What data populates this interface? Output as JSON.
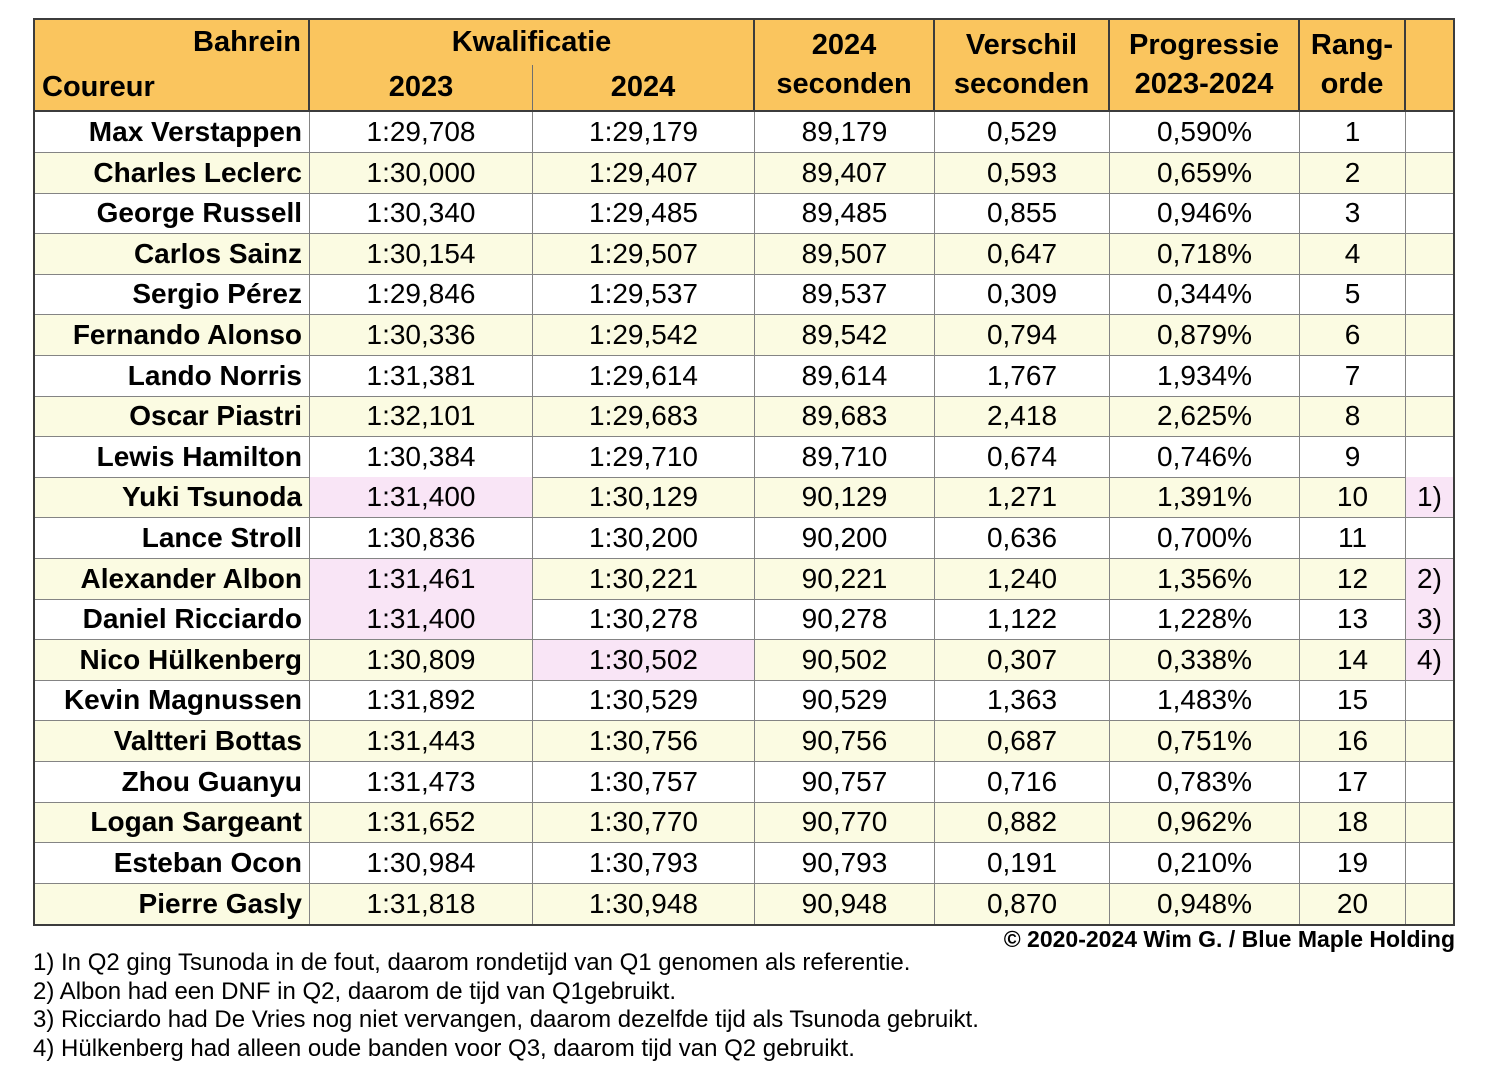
{
  "colors": {
    "header_bg": "#FAC55E",
    "alt_bg": "#FBFBE2",
    "hl_bg": "#F9E5F6",
    "grid": "#848484",
    "outer": "#3C3C3C"
  },
  "table": {
    "header": {
      "corner_top": "Bahrein",
      "corner_bottom": "Coureur",
      "group": "Kwalificatie",
      "sub_2023": "2023",
      "sub_2024": "2024",
      "col_seconds_line1": "2024",
      "col_seconds_line2": "seconden",
      "col_diff_line1": "Verschil",
      "col_diff_line2": "seconden",
      "col_progress_line1": "Progressie",
      "col_progress_line2": "2023-2024",
      "col_rank_line1": "Rang-",
      "col_rank_line2": "orde"
    },
    "rows": [
      {
        "coureur": "Max Verstappen",
        "q2023": "1:29,708",
        "q2024": "1:29,179",
        "sec": "89,179",
        "diff": "0,529",
        "prog": "0,590%",
        "rank": "1",
        "note": "",
        "h2023": false,
        "h2024": false,
        "hnote": false
      },
      {
        "coureur": "Charles Leclerc",
        "q2023": "1:30,000",
        "q2024": "1:29,407",
        "sec": "89,407",
        "diff": "0,593",
        "prog": "0,659%",
        "rank": "2",
        "note": "",
        "h2023": false,
        "h2024": false,
        "hnote": false
      },
      {
        "coureur": "George Russell",
        "q2023": "1:30,340",
        "q2024": "1:29,485",
        "sec": "89,485",
        "diff": "0,855",
        "prog": "0,946%",
        "rank": "3",
        "note": "",
        "h2023": false,
        "h2024": false,
        "hnote": false
      },
      {
        "coureur": "Carlos Sainz",
        "q2023": "1:30,154",
        "q2024": "1:29,507",
        "sec": "89,507",
        "diff": "0,647",
        "prog": "0,718%",
        "rank": "4",
        "note": "",
        "h2023": false,
        "h2024": false,
        "hnote": false
      },
      {
        "coureur": "Sergio Pérez",
        "q2023": "1:29,846",
        "q2024": "1:29,537",
        "sec": "89,537",
        "diff": "0,309",
        "prog": "0,344%",
        "rank": "5",
        "note": "",
        "h2023": false,
        "h2024": false,
        "hnote": false
      },
      {
        "coureur": "Fernando Alonso",
        "q2023": "1:30,336",
        "q2024": "1:29,542",
        "sec": "89,542",
        "diff": "0,794",
        "prog": "0,879%",
        "rank": "6",
        "note": "",
        "h2023": false,
        "h2024": false,
        "hnote": false
      },
      {
        "coureur": "Lando Norris",
        "q2023": "1:31,381",
        "q2024": "1:29,614",
        "sec": "89,614",
        "diff": "1,767",
        "prog": "1,934%",
        "rank": "7",
        "note": "",
        "h2023": false,
        "h2024": false,
        "hnote": false
      },
      {
        "coureur": "Oscar Piastri",
        "q2023": "1:32,101",
        "q2024": "1:29,683",
        "sec": "89,683",
        "diff": "2,418",
        "prog": "2,625%",
        "rank": "8",
        "note": "",
        "h2023": false,
        "h2024": false,
        "hnote": false
      },
      {
        "coureur": "Lewis Hamilton",
        "q2023": "1:30,384",
        "q2024": "1:29,710",
        "sec": "89,710",
        "diff": "0,674",
        "prog": "0,746%",
        "rank": "9",
        "note": "",
        "h2023": false,
        "h2024": false,
        "hnote": false
      },
      {
        "coureur": "Yuki Tsunoda",
        "q2023": "1:31,400",
        "q2024": "1:30,129",
        "sec": "90,129",
        "diff": "1,271",
        "prog": "1,391%",
        "rank": "10",
        "note": "1)",
        "h2023": true,
        "h2024": false,
        "hnote": true
      },
      {
        "coureur": "Lance Stroll",
        "q2023": "1:30,836",
        "q2024": "1:30,200",
        "sec": "90,200",
        "diff": "0,636",
        "prog": "0,700%",
        "rank": "11",
        "note": "",
        "h2023": false,
        "h2024": false,
        "hnote": false
      },
      {
        "coureur": "Alexander Albon",
        "q2023": "1:31,461",
        "q2024": "1:30,221",
        "sec": "90,221",
        "diff": "1,240",
        "prog": "1,356%",
        "rank": "12",
        "note": "2)",
        "h2023": true,
        "h2024": false,
        "hnote": true
      },
      {
        "coureur": "Daniel Ricciardo",
        "q2023": "1:31,400",
        "q2024": "1:30,278",
        "sec": "90,278",
        "diff": "1,122",
        "prog": "1,228%",
        "rank": "13",
        "note": "3)",
        "h2023": true,
        "h2024": false,
        "hnote": true
      },
      {
        "coureur": "Nico Hülkenberg",
        "q2023": "1:30,809",
        "q2024": "1:30,502",
        "sec": "90,502",
        "diff": "0,307",
        "prog": "0,338%",
        "rank": "14",
        "note": "4)",
        "h2023": false,
        "h2024": true,
        "hnote": true
      },
      {
        "coureur": "Kevin Magnussen",
        "q2023": "1:31,892",
        "q2024": "1:30,529",
        "sec": "90,529",
        "diff": "1,363",
        "prog": "1,483%",
        "rank": "15",
        "note": "",
        "h2023": false,
        "h2024": false,
        "hnote": false
      },
      {
        "coureur": "Valtteri Bottas",
        "q2023": "1:31,443",
        "q2024": "1:30,756",
        "sec": "90,756",
        "diff": "0,687",
        "prog": "0,751%",
        "rank": "16",
        "note": "",
        "h2023": false,
        "h2024": false,
        "hnote": false
      },
      {
        "coureur": "Zhou Guanyu",
        "q2023": "1:31,473",
        "q2024": "1:30,757",
        "sec": "90,757",
        "diff": "0,716",
        "prog": "0,783%",
        "rank": "17",
        "note": "",
        "h2023": false,
        "h2024": false,
        "hnote": false
      },
      {
        "coureur": "Logan Sargeant",
        "q2023": "1:31,652",
        "q2024": "1:30,770",
        "sec": "90,770",
        "diff": "0,882",
        "prog": "0,962%",
        "rank": "18",
        "note": "",
        "h2023": false,
        "h2024": false,
        "hnote": false
      },
      {
        "coureur": "Esteban Ocon",
        "q2023": "1:30,984",
        "q2024": "1:30,793",
        "sec": "90,793",
        "diff": "0,191",
        "prog": "0,210%",
        "rank": "19",
        "note": "",
        "h2023": false,
        "h2024": false,
        "hnote": false
      },
      {
        "coureur": "Pierre Gasly",
        "q2023": "1:31,818",
        "q2024": "1:30,948",
        "sec": "90,948",
        "diff": "0,870",
        "prog": "0,948%",
        "rank": "20",
        "note": "",
        "h2023": false,
        "h2024": false,
        "hnote": false
      }
    ]
  },
  "footer": {
    "copyright": "© 2020-2024 Wim G. / Blue Maple Holding",
    "notes": [
      "1) In Q2 ging Tsunoda in de fout, daarom rondetijd van Q1 genomen als referentie.",
      "2) Albon had een DNF in Q2, daarom de tijd van Q1gebruikt.",
      "3) Ricciardo had De Vries nog niet vervangen, daarom dezelfde tijd als Tsunoda gebruikt.",
      "4) Hülkenberg had alleen oude banden voor Q3, daarom tijd van Q2 gebruikt."
    ]
  }
}
